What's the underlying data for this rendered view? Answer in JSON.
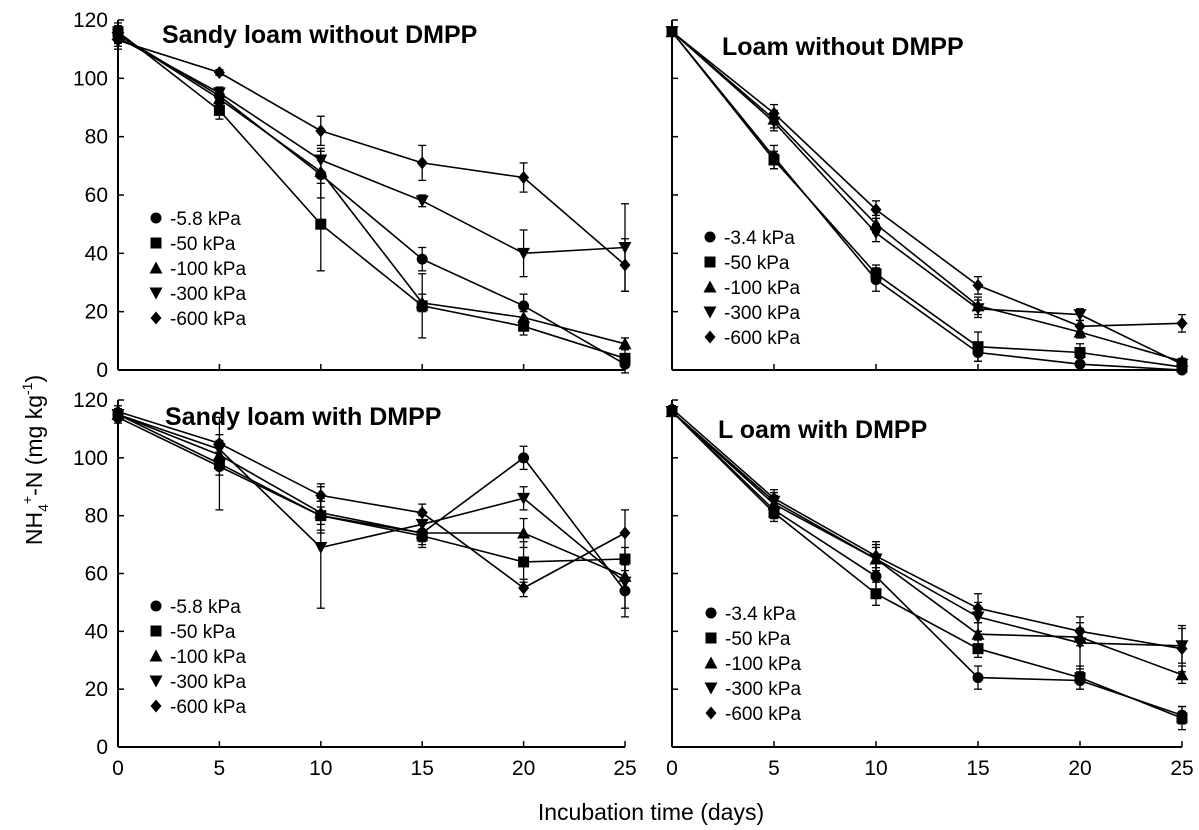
{
  "figure": {
    "xlabel": "Incubation time (days)",
    "ylabel_main": "NH",
    "ylabel_sub": "4",
    "ylabel_sup_plus": "+",
    "ylabel_rest": "-N (mg kg",
    "ylabel_sup": "-1",
    "ylabel_close": ")"
  },
  "chart_data": [
    {
      "type": "line",
      "title": "Sandy loam without DMPP",
      "x": [
        0,
        5,
        10,
        15,
        20,
        25
      ],
      "xticks": [
        "0",
        "5",
        "10",
        "15",
        "20",
        "25"
      ],
      "yticks": [
        "0",
        "20",
        "40",
        "60",
        "80",
        "100",
        "120"
      ],
      "xlim": [
        0,
        25
      ],
      "ylim": [
        0,
        120
      ],
      "series": [
        {
          "name": "-5.8 kPa",
          "marker": "circle",
          "values": [
            115,
            94,
            67,
            38,
            22,
            2
          ],
          "err": [
            3,
            2,
            8,
            4,
            4,
            3
          ]
        },
        {
          "name": "-50 kPa",
          "marker": "square",
          "values": [
            116,
            89,
            50,
            22,
            15,
            4
          ],
          "err": [
            3,
            3,
            16,
            11,
            3,
            3
          ]
        },
        {
          "name": "-100 kPa",
          "marker": "triangle-up",
          "values": [
            115,
            93,
            68,
            23,
            18,
            9
          ],
          "err": [
            3,
            2,
            4,
            3,
            2,
            2
          ]
        },
        {
          "name": "-300 kPa",
          "marker": "triangle-down",
          "values": [
            114,
            95,
            72,
            58,
            40,
            42
          ],
          "err": [
            3,
            2,
            4,
            2,
            8,
            15
          ]
        },
        {
          "name": "-600 kPa",
          "marker": "diamond",
          "values": [
            113,
            102,
            82,
            71,
            66,
            36
          ],
          "err": [
            3,
            1,
            5,
            6,
            5,
            9
          ]
        }
      ]
    },
    {
      "type": "line",
      "title": "Loam without DMPP",
      "x": [
        0,
        5,
        10,
        15,
        20,
        25
      ],
      "xticks": [
        "0",
        "5",
        "10",
        "15",
        "20",
        "25"
      ],
      "yticks": [
        "0",
        "20",
        "40",
        "60",
        "80",
        "100",
        "120"
      ],
      "xlim": [
        0,
        25
      ],
      "ylim": [
        0,
        120
      ],
      "series": [
        {
          "name": "-3.4 kPa",
          "marker": "circle",
          "values": [
            116,
            73,
            31,
            6,
            2,
            0
          ],
          "err": [
            1,
            4,
            4,
            3,
            2,
            1
          ]
        },
        {
          "name": "-50 kPa",
          "marker": "square",
          "values": [
            116,
            72,
            33,
            8,
            6,
            1
          ],
          "err": [
            1,
            3,
            3,
            5,
            3,
            1
          ]
        },
        {
          "name": "-100 kPa",
          "marker": "triangle-up",
          "values": [
            116,
            86,
            50,
            22,
            13,
            3
          ],
          "err": [
            1,
            3,
            3,
            3,
            2,
            1
          ]
        },
        {
          "name": "-300 kPa",
          "marker": "triangle-down",
          "values": [
            116,
            85,
            47,
            21,
            19,
            2
          ],
          "err": [
            1,
            3,
            3,
            3,
            2,
            1
          ]
        },
        {
          "name": "-600 kPa",
          "marker": "diamond",
          "values": [
            116,
            88,
            55,
            29,
            15,
            16
          ],
          "err": [
            1,
            3,
            3,
            3,
            2,
            3
          ]
        }
      ]
    },
    {
      "type": "line",
      "title": "Sandy loam with DMPP",
      "x": [
        0,
        5,
        10,
        15,
        20,
        25
      ],
      "xticks": [
        "0",
        "5",
        "10",
        "15",
        "20",
        "25"
      ],
      "yticks": [
        "0",
        "20",
        "40",
        "60",
        "80",
        "100",
        "120"
      ],
      "xlim": [
        0,
        25
      ],
      "ylim": [
        0,
        120
      ],
      "series": [
        {
          "name": "-5.8 kPa",
          "marker": "circle",
          "values": [
            114,
            97,
            80,
            74,
            100,
            54
          ],
          "err": [
            2,
            3,
            6,
            4,
            4,
            9
          ]
        },
        {
          "name": "-50 kPa",
          "marker": "square",
          "values": [
            115,
            98,
            80,
            73,
            64,
            65
          ],
          "err": [
            2,
            16,
            5,
            4,
            7,
            4
          ]
        },
        {
          "name": "-100 kPa",
          "marker": "triangle-up",
          "values": [
            115,
            101,
            81,
            74,
            74,
            59
          ],
          "err": [
            2,
            3,
            4,
            3,
            5,
            5
          ]
        },
        {
          "name": "-300 kPa",
          "marker": "triangle-down",
          "values": [
            115,
            103,
            69,
            77,
            86,
            57
          ],
          "err": [
            2,
            3,
            21,
            3,
            4,
            9
          ]
        },
        {
          "name": "-600 kPa",
          "marker": "diamond",
          "values": [
            116,
            105,
            87,
            81,
            55,
            74
          ],
          "err": [
            2,
            3,
            4,
            3,
            3,
            8
          ]
        }
      ]
    },
    {
      "type": "line",
      "title": "L oam with DMPP",
      "x": [
        0,
        5,
        10,
        15,
        20,
        25
      ],
      "xticks": [
        "0",
        "5",
        "10",
        "15",
        "20",
        "25"
      ],
      "yticks": [
        "0",
        "20",
        "40",
        "60",
        "80",
        "100",
        "120"
      ],
      "xlim": [
        0,
        25
      ],
      "ylim": [
        0,
        120
      ],
      "series": [
        {
          "name": "-3.4 kPa",
          "marker": "circle",
          "values": [
            116,
            82,
            59,
            24,
            23,
            11
          ],
          "err": [
            1,
            3,
            5,
            4,
            3,
            3
          ]
        },
        {
          "name": "-50 kPa",
          "marker": "square",
          "values": [
            116,
            81,
            53,
            34,
            24,
            10
          ],
          "err": [
            1,
            3,
            4,
            3,
            4,
            4
          ]
        },
        {
          "name": "-100 kPa",
          "marker": "triangle-up",
          "values": [
            116,
            84,
            65,
            39,
            38,
            25
          ],
          "err": [
            1,
            3,
            4,
            4,
            3,
            3
          ]
        },
        {
          "name": "-300 kPa",
          "marker": "triangle-down",
          "values": [
            116,
            85,
            65,
            45,
            36,
            35
          ],
          "err": [
            1,
            3,
            6,
            5,
            9,
            6
          ]
        },
        {
          "name": "-600 kPa",
          "marker": "diamond",
          "values": [
            117,
            86,
            66,
            48,
            40,
            34
          ],
          "err": [
            1,
            3,
            4,
            5,
            3,
            8
          ]
        }
      ]
    }
  ]
}
